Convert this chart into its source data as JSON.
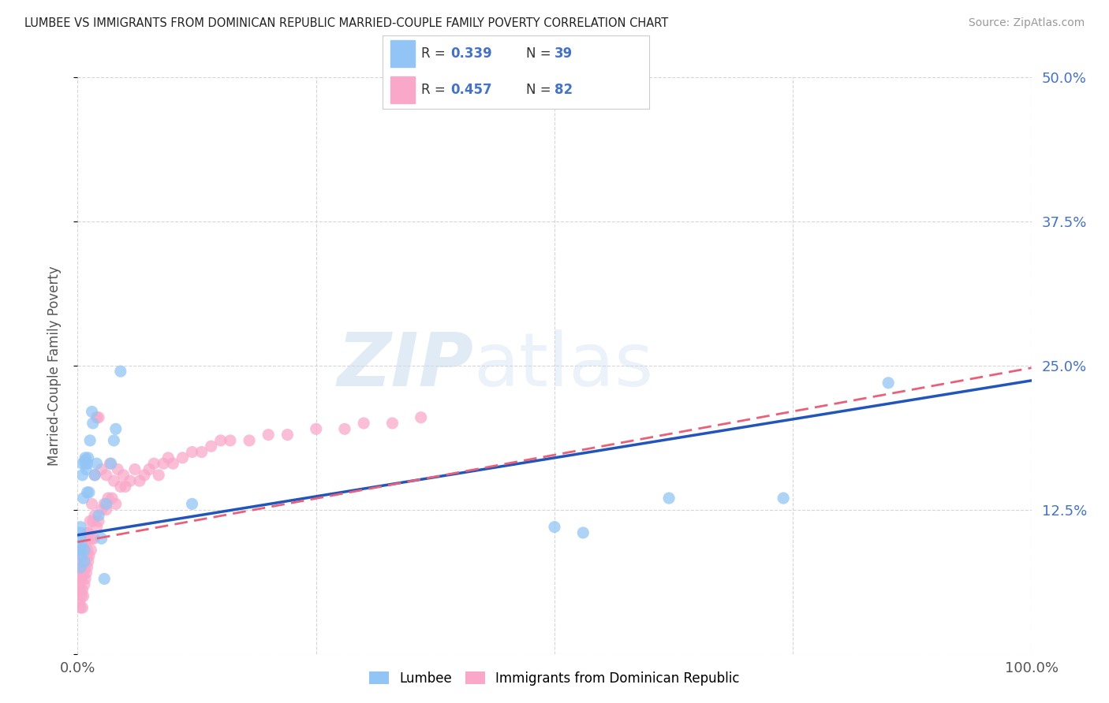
{
  "title": "LUMBEE VS IMMIGRANTS FROM DOMINICAN REPUBLIC MARRIED-COUPLE FAMILY POVERTY CORRELATION CHART",
  "source": "Source: ZipAtlas.com",
  "ylabel": "Married-Couple Family Poverty",
  "xlim": [
    0,
    1.0
  ],
  "ylim": [
    0,
    0.5
  ],
  "xticks": [
    0.0,
    0.25,
    0.5,
    0.75,
    1.0
  ],
  "xticklabels": [
    "0.0%",
    "",
    "",
    "",
    "100.0%"
  ],
  "yticks": [
    0.0,
    0.125,
    0.25,
    0.375,
    0.5
  ],
  "yticklabels": [
    "",
    "12.5%",
    "25.0%",
    "37.5%",
    "50.0%"
  ],
  "lumbee_R": 0.339,
  "lumbee_N": 39,
  "dr_R": 0.457,
  "dr_N": 82,
  "lumbee_color": "#92C5F5",
  "dr_color": "#F9A8C9",
  "lumbee_line_color": "#2255BB",
  "dr_line_color": "#E8607A",
  "background_color": "#FFFFFF",
  "grid_color": "#CCCCCC",
  "watermark_zip": "ZIP",
  "watermark_atlas": "atlas",
  "lumbee_line_x0": 0.0,
  "lumbee_line_y0": 0.103,
  "lumbee_line_x1": 1.0,
  "lumbee_line_y1": 0.237,
  "dr_line_x0": 0.0,
  "dr_line_y0": 0.097,
  "dr_line_x1": 1.0,
  "dr_line_y1": 0.248,
  "lumbee_scatter_x": [
    0.003,
    0.003,
    0.003,
    0.003,
    0.003,
    0.004,
    0.004,
    0.005,
    0.005,
    0.006,
    0.007,
    0.007,
    0.008,
    0.008,
    0.008,
    0.009,
    0.01,
    0.01,
    0.011,
    0.012,
    0.013,
    0.015,
    0.016,
    0.018,
    0.02,
    0.022,
    0.025,
    0.028,
    0.03,
    0.035,
    0.038,
    0.04,
    0.045,
    0.12,
    0.5,
    0.53,
    0.62,
    0.74,
    0.85
  ],
  "lumbee_scatter_y": [
    0.075,
    0.09,
    0.1,
    0.105,
    0.11,
    0.085,
    0.095,
    0.155,
    0.165,
    0.135,
    0.08,
    0.09,
    0.165,
    0.168,
    0.17,
    0.16,
    0.14,
    0.165,
    0.17,
    0.14,
    0.185,
    0.21,
    0.2,
    0.155,
    0.165,
    0.12,
    0.1,
    0.065,
    0.13,
    0.165,
    0.185,
    0.195,
    0.245,
    0.13,
    0.11,
    0.105,
    0.135,
    0.135,
    0.235
  ],
  "dr_scatter_x": [
    0.002,
    0.002,
    0.002,
    0.003,
    0.003,
    0.003,
    0.003,
    0.004,
    0.004,
    0.004,
    0.005,
    0.005,
    0.005,
    0.005,
    0.006,
    0.006,
    0.006,
    0.007,
    0.007,
    0.007,
    0.008,
    0.008,
    0.008,
    0.009,
    0.009,
    0.01,
    0.01,
    0.01,
    0.011,
    0.011,
    0.012,
    0.013,
    0.013,
    0.014,
    0.015,
    0.015,
    0.016,
    0.017,
    0.018,
    0.018,
    0.02,
    0.02,
    0.022,
    0.022,
    0.025,
    0.025,
    0.028,
    0.03,
    0.03,
    0.032,
    0.034,
    0.036,
    0.038,
    0.04,
    0.042,
    0.045,
    0.048,
    0.05,
    0.055,
    0.06,
    0.065,
    0.07,
    0.075,
    0.08,
    0.085,
    0.09,
    0.095,
    0.1,
    0.11,
    0.12,
    0.13,
    0.14,
    0.15,
    0.16,
    0.18,
    0.2,
    0.22,
    0.25,
    0.28,
    0.3,
    0.33,
    0.36
  ],
  "dr_scatter_y": [
    0.045,
    0.06,
    0.075,
    0.04,
    0.055,
    0.065,
    0.08,
    0.05,
    0.065,
    0.09,
    0.04,
    0.055,
    0.07,
    0.085,
    0.05,
    0.07,
    0.09,
    0.06,
    0.075,
    0.09,
    0.065,
    0.08,
    0.095,
    0.07,
    0.085,
    0.075,
    0.09,
    0.105,
    0.08,
    0.105,
    0.085,
    0.1,
    0.115,
    0.09,
    0.1,
    0.13,
    0.115,
    0.1,
    0.12,
    0.155,
    0.11,
    0.205,
    0.115,
    0.205,
    0.125,
    0.16,
    0.13,
    0.125,
    0.155,
    0.135,
    0.165,
    0.135,
    0.15,
    0.13,
    0.16,
    0.145,
    0.155,
    0.145,
    0.15,
    0.16,
    0.15,
    0.155,
    0.16,
    0.165,
    0.155,
    0.165,
    0.17,
    0.165,
    0.17,
    0.175,
    0.175,
    0.18,
    0.185,
    0.185,
    0.185,
    0.19,
    0.19,
    0.195,
    0.195,
    0.2,
    0.2,
    0.205
  ]
}
